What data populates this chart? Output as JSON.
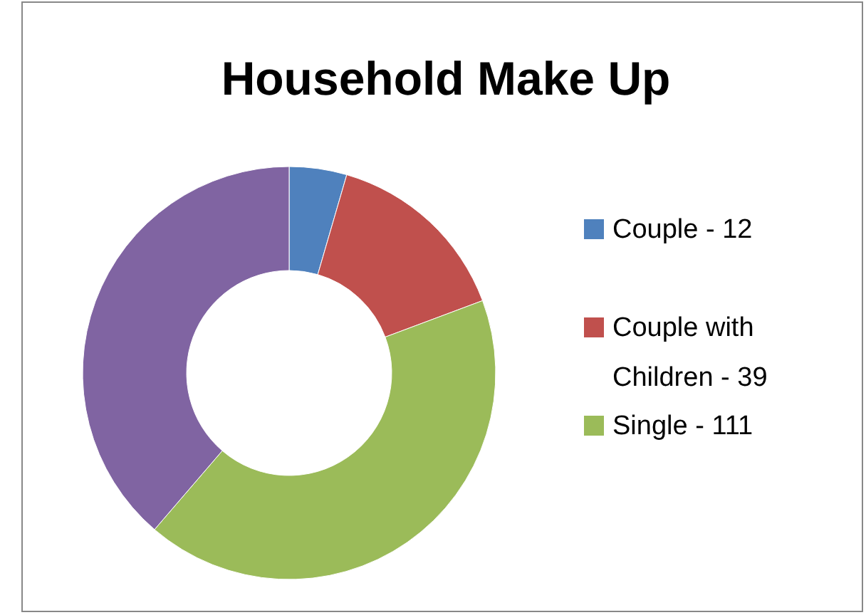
{
  "chart_data": {
    "type": "donut",
    "title": "Household Make Up",
    "categories": [
      "Couple - 12",
      "Couple with Children - 39",
      "Single - 111",
      null
    ],
    "values": [
      4.5,
      14.8,
      42.0,
      38.7
    ],
    "colors": [
      "#4f81bd",
      "#c0504d",
      "#9bbb59",
      "#8064a2"
    ],
    "legend": "right"
  }
}
